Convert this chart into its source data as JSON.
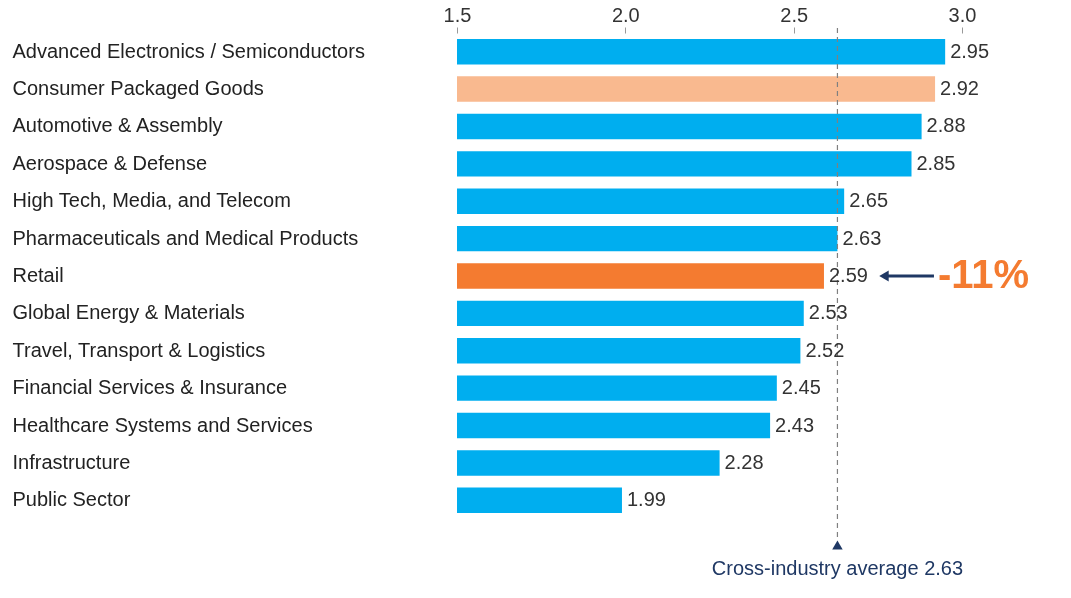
{
  "chart_data": {
    "type": "bar",
    "orientation": "horizontal",
    "categories": [
      "Advanced Electronics / Semiconductors",
      "Consumer Packaged Goods",
      "Automotive & Assembly",
      "Aerospace & Defense",
      "High Tech, Media, and Telecom",
      "Pharmaceuticals and Medical Products",
      "Retail",
      "Global Energy & Materials",
      "Travel, Transport & Logistics",
      "Financial Services & Insurance",
      "Healthcare Systems and Services",
      "Infrastructure",
      "Public Sector"
    ],
    "values": [
      2.95,
      2.92,
      2.88,
      2.85,
      2.65,
      2.63,
      2.59,
      2.53,
      2.52,
      2.45,
      2.43,
      2.28,
      1.99
    ],
    "colors": [
      "#00aeef",
      "#f9b98f",
      "#00aeef",
      "#00aeef",
      "#00aeef",
      "#00aeef",
      "#f47b30",
      "#00aeef",
      "#00aeef",
      "#00aeef",
      "#00aeef",
      "#00aeef",
      "#00aeef"
    ],
    "xlim": [
      1.5,
      3.0
    ],
    "xticks": [
      {
        "value": 1.5,
        "label": "1.5"
      },
      {
        "value": 2.0,
        "label": "2.0"
      },
      {
        "value": 2.5,
        "label": "2.5"
      },
      {
        "value": 3.0,
        "label": "3.0"
      }
    ],
    "data_labels": true,
    "grid": false,
    "ref_lines": [
      {
        "axis": "x",
        "value": 2.63,
        "label": "Cross-industry average 2.63",
        "color": "#808080",
        "line_style": "dashed"
      }
    ],
    "annotations": [
      {
        "text": "-11%",
        "x": 2.59,
        "y": "Retail"
      }
    ]
  }
}
